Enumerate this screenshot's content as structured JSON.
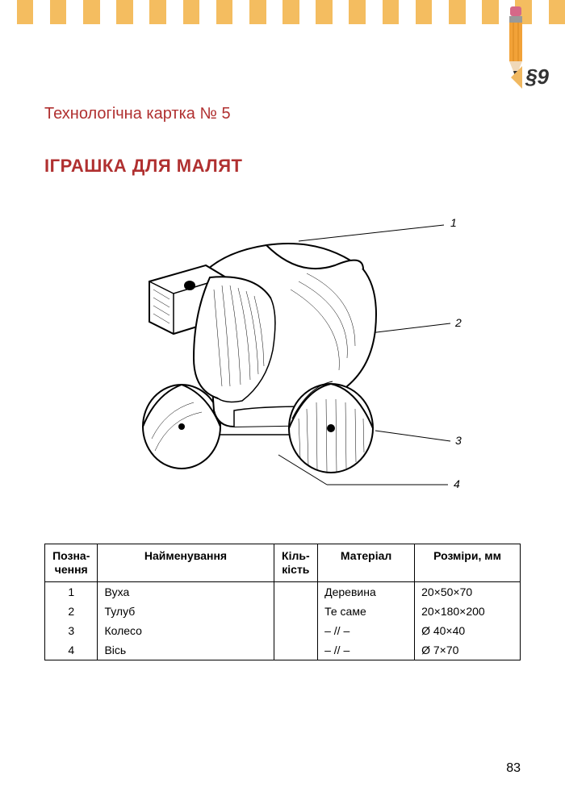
{
  "stripes": {
    "count": 34,
    "colors": [
      "#f5d9a0",
      "#f4bd60",
      "#f2a238"
    ]
  },
  "pencil": {
    "body_color": "#f2a238",
    "ferrule_color": "#888888",
    "eraser_color": "#d56888",
    "tip_wood": "#f0d8b8",
    "tip_lead": "#333333"
  },
  "section": {
    "label": "§9",
    "triangle_color": "#f0b860"
  },
  "card_title": "Технологічна картка № 5",
  "main_title": "ІГРАШКА ДЛЯ МАЛЯТ",
  "figure": {
    "callouts": [
      "1",
      "2",
      "3",
      "4"
    ],
    "stroke": "#000000",
    "fill": "#ffffff"
  },
  "table": {
    "headers": {
      "num": "Позна-\nчення",
      "name": "Найменування",
      "qty": "Кіль-\nкість",
      "mat": "Матеріал",
      "dim": "Розміри, мм"
    },
    "rows": [
      {
        "num": "1",
        "name": "Вуха",
        "qty": "",
        "mat": "Деревина",
        "dim": "20×50×70"
      },
      {
        "num": "2",
        "name": "Тулуб",
        "qty": "",
        "mat": "Те саме",
        "dim": "20×180×200"
      },
      {
        "num": "3",
        "name": "Колесо",
        "qty": "",
        "mat": "– // –",
        "dim": "Ø 40×40"
      },
      {
        "num": "4",
        "name": "Вісь",
        "qty": "",
        "mat": "– // –",
        "dim": "Ø 7×70"
      }
    ]
  },
  "page_number": "83",
  "colors": {
    "title": "#b03030",
    "text": "#000000",
    "background": "#ffffff",
    "border": "#000000"
  }
}
